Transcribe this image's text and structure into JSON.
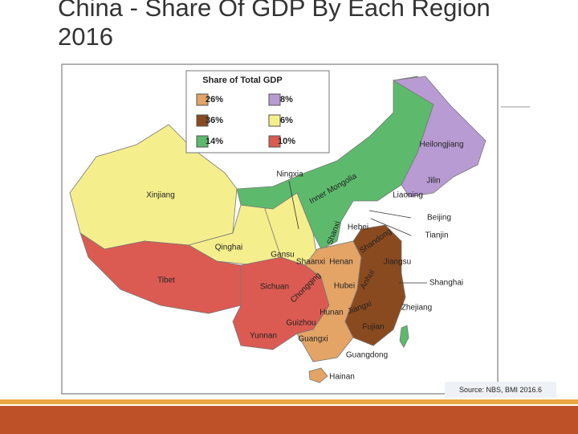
{
  "header": {
    "title": "China - Share Of GDP By Each Region 2016"
  },
  "legend": {
    "title": "Share of Total GDP",
    "items": [
      {
        "label": "26%",
        "color": "#e3a466"
      },
      {
        "label": "36%",
        "color": "#8a4a1f"
      },
      {
        "label": "14%",
        "color": "#5dba6c"
      },
      {
        "label": "8%",
        "color": "#b89bd2"
      },
      {
        "label": "6%",
        "color": "#f5ee8c"
      },
      {
        "label": "10%",
        "color": "#db5b52"
      }
    ]
  },
  "regions": [
    {
      "name": "Heilongjiang"
    },
    {
      "name": "Jilin"
    },
    {
      "name": "Liaoning"
    },
    {
      "name": "Inner Mongolia"
    },
    {
      "name": "Ningxia"
    },
    {
      "name": "Xinjiang"
    },
    {
      "name": "Beijing"
    },
    {
      "name": "Tianjin"
    },
    {
      "name": "Hebei"
    },
    {
      "name": "Shanxi"
    },
    {
      "name": "Shandong"
    },
    {
      "name": "Qinghai"
    },
    {
      "name": "Gansu"
    },
    {
      "name": "Shaanxi"
    },
    {
      "name": "Henan"
    },
    {
      "name": "Jiangsu"
    },
    {
      "name": "Tibet"
    },
    {
      "name": "Sichuan"
    },
    {
      "name": "Hubei"
    },
    {
      "name": "Anhui"
    },
    {
      "name": "Shanghai"
    },
    {
      "name": "Chongqing"
    },
    {
      "name": "Hunan"
    },
    {
      "name": "Jiangxi"
    },
    {
      "name": "Zhejiang"
    },
    {
      "name": "Guizhou"
    },
    {
      "name": "Yunnan"
    },
    {
      "name": "Fujian"
    },
    {
      "name": "Guangxi"
    },
    {
      "name": "Guangdong"
    },
    {
      "name": "Hainan"
    }
  ],
  "source": "Source: NBS, BMI 2016.6"
}
